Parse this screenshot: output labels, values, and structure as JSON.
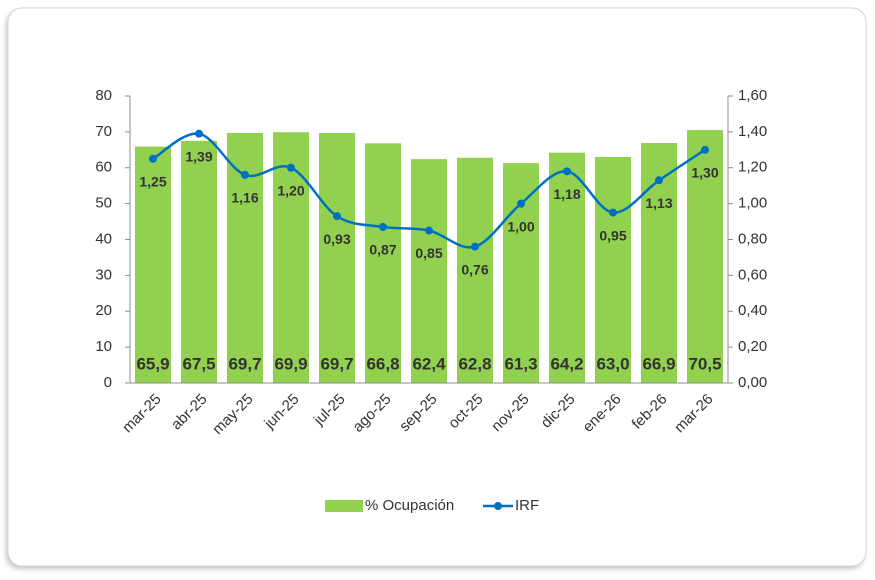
{
  "chart_data": {
    "type": "bar",
    "categories": [
      "mar-25",
      "abr-25",
      "may-25",
      "jun-25",
      "jul-25",
      "ago-25",
      "sep-25",
      "oct-25",
      "nov-25",
      "dic-25",
      "ene-26",
      "feb-26",
      "mar-26"
    ],
    "series": [
      {
        "name": "% Ocupación",
        "type": "bar",
        "color": "#92d050",
        "values": [
          65.9,
          67.5,
          69.7,
          69.9,
          69.7,
          66.8,
          62.4,
          62.8,
          61.3,
          64.2,
          63.0,
          66.9,
          70.5
        ],
        "value_labels": [
          "65,9",
          "67,5",
          "69,7",
          "69,9",
          "69,7",
          "66,8",
          "62,4",
          "62,8",
          "61,3",
          "64,2",
          "63,0",
          "66,9",
          "70,5"
        ]
      },
      {
        "name": "IRF",
        "type": "line",
        "axis": "y2",
        "color": "#0070c0",
        "values": [
          1.25,
          1.39,
          1.16,
          1.2,
          0.93,
          0.87,
          0.85,
          0.76,
          1.0,
          1.18,
          0.95,
          1.13,
          1.3
        ],
        "value_labels": [
          "1,25",
          "1,39",
          "1,16",
          "1,20",
          "0,93",
          "0,87",
          "0,85",
          "0,76",
          "1,00",
          "1,18",
          "0,95",
          "1,13",
          "1,30"
        ]
      }
    ],
    "ylim": [
      0,
      80
    ],
    "yticks": [
      0,
      10,
      20,
      30,
      40,
      50,
      60,
      70,
      80
    ],
    "y2lim": [
      0,
      1.6
    ],
    "y2ticks": [
      {
        "value": 0,
        "label": "0,00"
      },
      {
        "value": 0.2,
        "label": "0,20"
      },
      {
        "value": 0.4,
        "label": "0,40"
      },
      {
        "value": 0.6,
        "label": "0,60"
      },
      {
        "value": 0.8,
        "label": "0,80"
      },
      {
        "value": 1.0,
        "label": "1,00"
      },
      {
        "value": 1.2,
        "label": "1,20"
      },
      {
        "value": 1.4,
        "label": "1,40"
      },
      {
        "value": 1.6,
        "label": "1,60"
      }
    ],
    "legend": "bottom",
    "grid": false
  }
}
